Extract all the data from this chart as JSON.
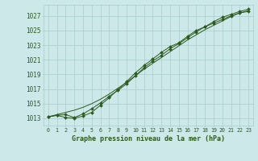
{
  "hours": [
    0,
    1,
    2,
    3,
    4,
    5,
    6,
    7,
    8,
    9,
    10,
    11,
    12,
    13,
    14,
    15,
    16,
    17,
    18,
    19,
    20,
    21,
    22,
    23
  ],
  "line1": [
    1013.2,
    1013.4,
    1013.1,
    1013.0,
    1013.3,
    1013.8,
    1014.8,
    1015.8,
    1016.9,
    1018.0,
    1019.2,
    1020.2,
    1021.1,
    1022.0,
    1022.8,
    1023.3,
    1024.2,
    1025.0,
    1025.5,
    1026.2,
    1026.8,
    1027.2,
    1027.6,
    1027.9
  ],
  "line2": [
    1013.2,
    1013.4,
    1013.5,
    1013.1,
    1013.6,
    1014.3,
    1015.1,
    1016.0,
    1016.8,
    1017.7,
    1018.8,
    1019.9,
    1020.8,
    1021.6,
    1022.5,
    1023.2,
    1024.0,
    1024.8,
    1025.5,
    1026.0,
    1026.5,
    1027.0,
    1027.4,
    1027.6
  ],
  "line3": [
    1013.2,
    1013.5,
    1013.8,
    1014.1,
    1014.5,
    1015.0,
    1015.6,
    1016.3,
    1017.1,
    1017.9,
    1018.8,
    1019.7,
    1020.5,
    1021.3,
    1022.1,
    1022.9,
    1023.7,
    1024.4,
    1025.1,
    1025.7,
    1026.3,
    1026.9,
    1027.4,
    1027.7
  ],
  "line_color": "#2d5a1e",
  "bg_color": "#cce8e8",
  "grid_color": "#aacccc",
  "title": "Graphe pression niveau de la mer (hPa)",
  "ylim": [
    1012.0,
    1028.5
  ],
  "yticks": [
    1013,
    1015,
    1017,
    1019,
    1021,
    1023,
    1025,
    1027
  ],
  "xticks": [
    0,
    1,
    2,
    3,
    4,
    5,
    6,
    7,
    8,
    9,
    10,
    11,
    12,
    13,
    14,
    15,
    16,
    17,
    18,
    19,
    20,
    21,
    22,
    23
  ]
}
